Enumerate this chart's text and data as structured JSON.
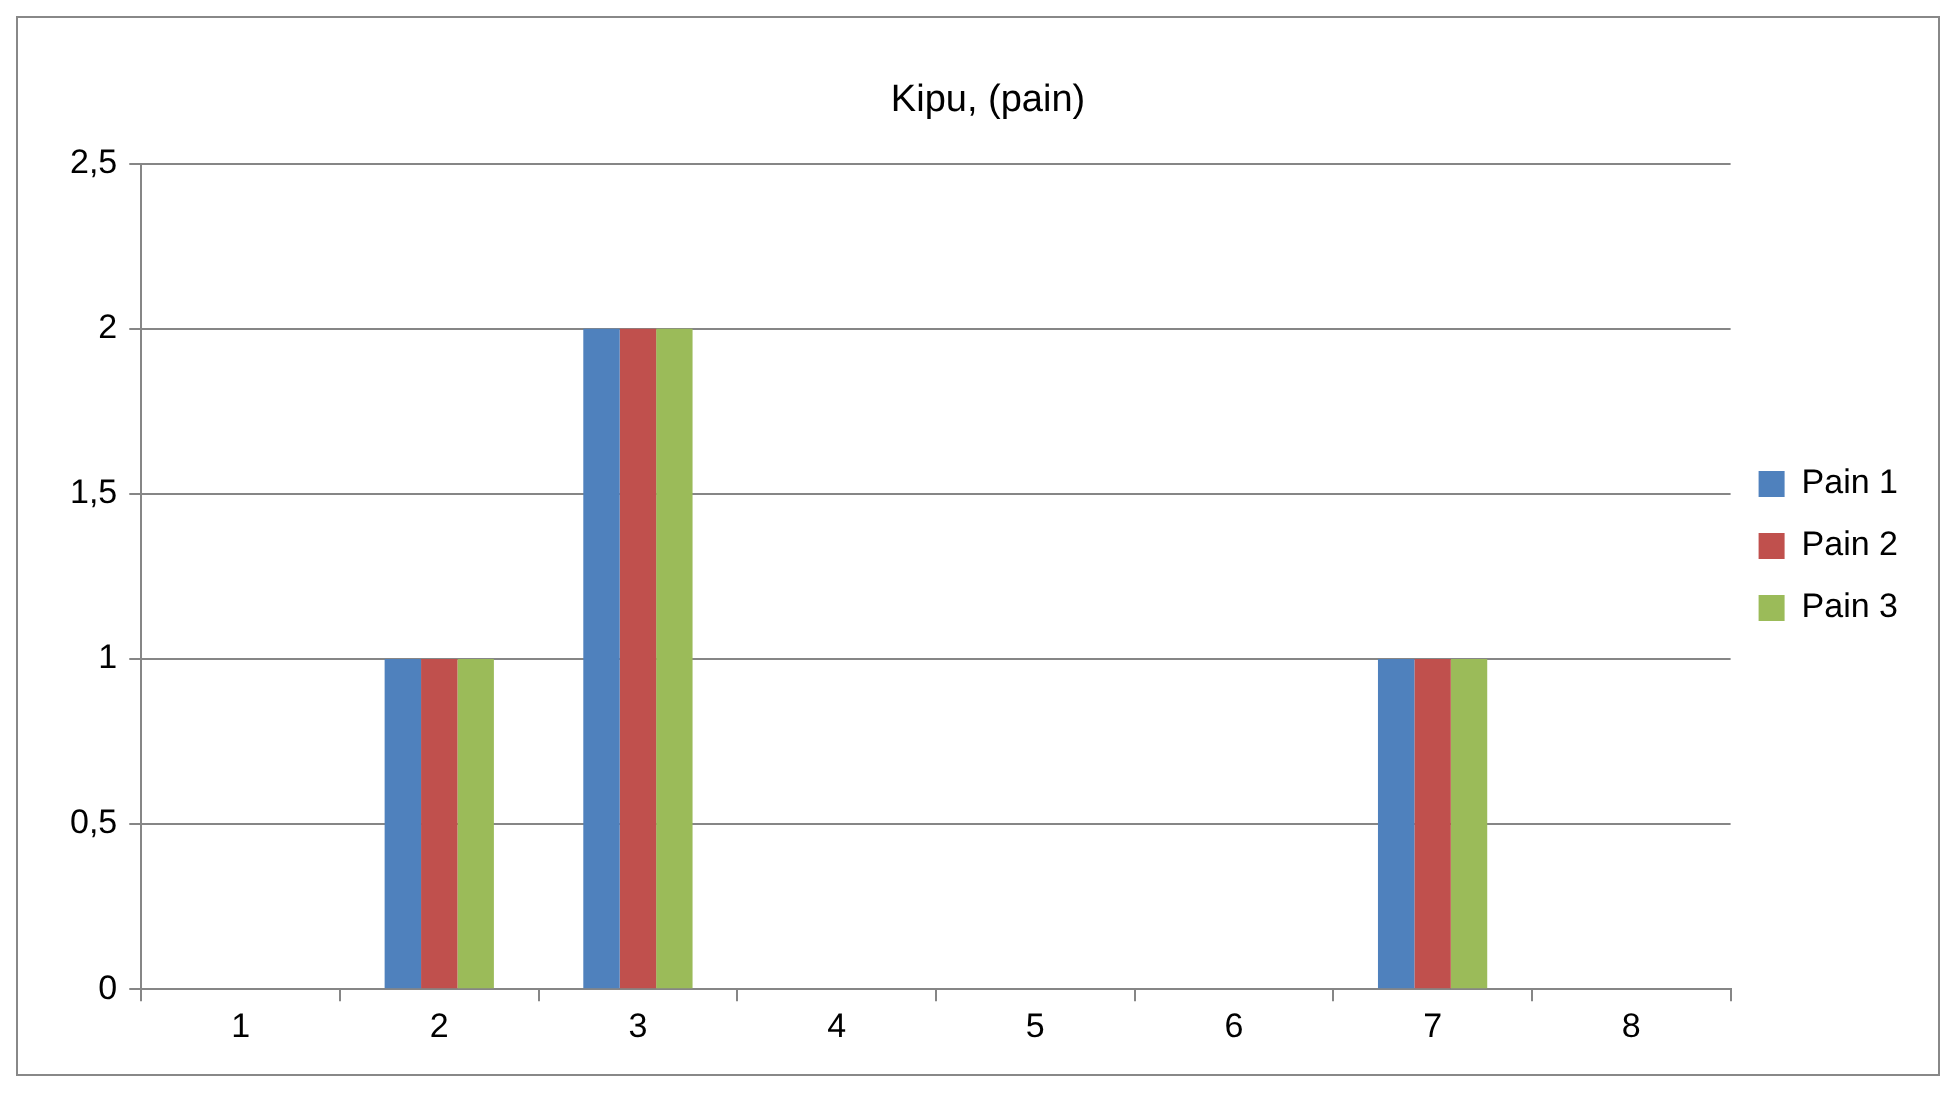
{
  "chart_data": {
    "type": "bar",
    "title": "Kipu, (pain)",
    "categories": [
      "1",
      "2",
      "3",
      "4",
      "5",
      "6",
      "7",
      "8"
    ],
    "series": [
      {
        "name": "Pain 1",
        "color": "#4f81bd",
        "values": [
          0,
          1,
          2,
          0,
          0,
          0,
          1,
          0
        ]
      },
      {
        "name": "Pain 2",
        "color": "#c0504d",
        "values": [
          0,
          1,
          2,
          0,
          0,
          0,
          1,
          0
        ]
      },
      {
        "name": "Pain 3",
        "color": "#9bbb59",
        "values": [
          0,
          1,
          2,
          0,
          0,
          0,
          1,
          0
        ]
      }
    ],
    "ylim": [
      0,
      2.5
    ],
    "yticks": [
      0,
      {
        "value": 0.5,
        "label": "0,5"
      },
      1,
      {
        "value": 1.5,
        "label": "1,5"
      },
      2,
      {
        "value": 2.5,
        "label": "2,5"
      }
    ],
    "grid": "y",
    "legend": "right"
  }
}
